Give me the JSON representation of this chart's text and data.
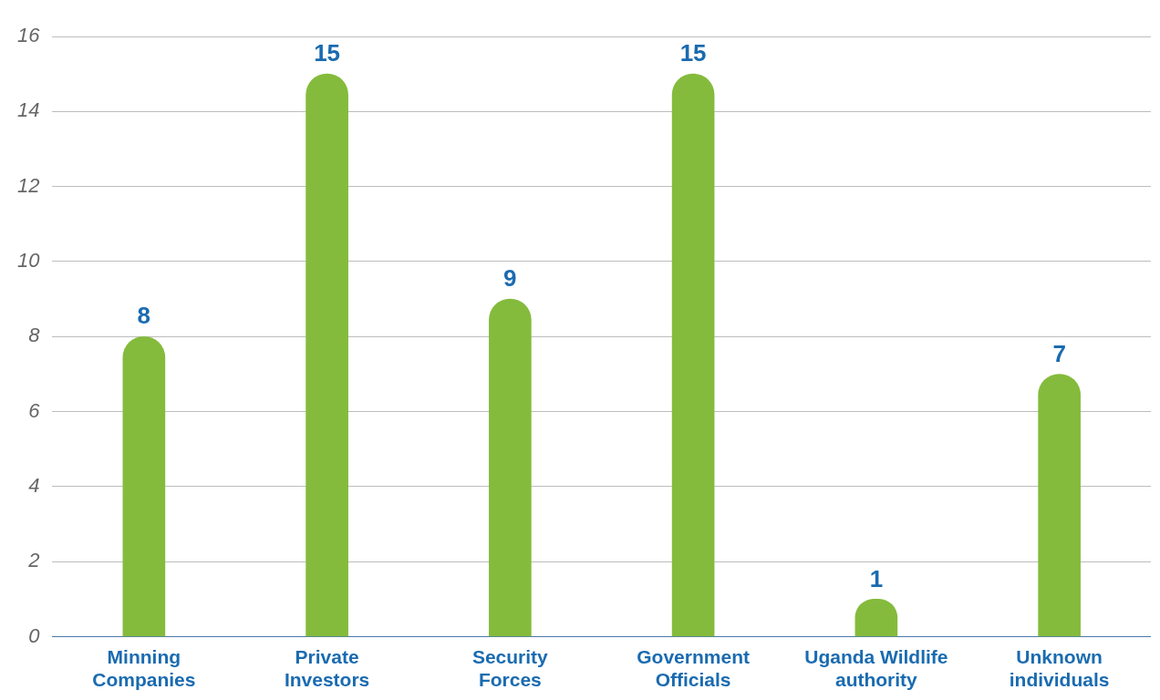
{
  "chart_data": {
    "type": "bar",
    "categories": [
      "Minning Companies",
      "Private Investors",
      "Security Forces",
      "Government Officials",
      "Uganda Wildlife authority",
      "Unknown individuals"
    ],
    "values": [
      8,
      15,
      9,
      15,
      1,
      7
    ],
    "color": "#84bb3c",
    "ylim": [
      0,
      16
    ],
    "yticks": [
      0,
      2,
      4,
      6,
      8,
      10,
      12,
      14,
      16
    ],
    "grid": "y",
    "data_labels": true
  }
}
